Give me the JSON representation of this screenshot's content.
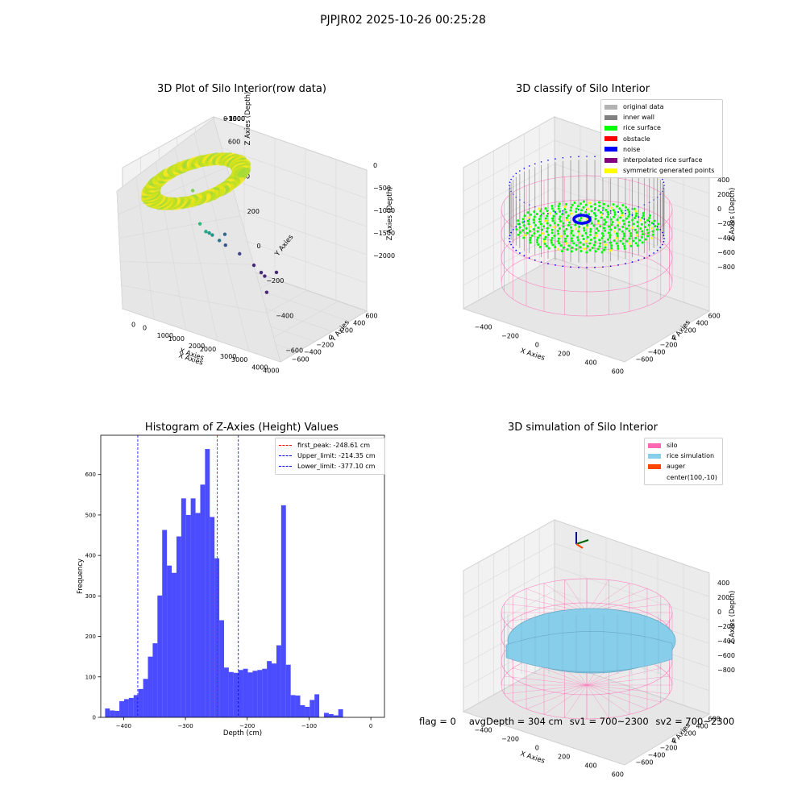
{
  "suptitle": "PJPJR02 2025-10-26 00:25:28",
  "chart_data": [
    {
      "type": "scatter",
      "projection": "3d",
      "title": "3D Plot of Silo Interior(row data)",
      "xlabel": "X Axies",
      "ylabel": "Y Axies",
      "zlabel": "Z Axies (Depth)",
      "xticks": [
        "0",
        "1000",
        "2000",
        "3000",
        "4000"
      ],
      "yticks": [
        "−600",
        "−400",
        "−200",
        "0",
        "200",
        "400",
        "600"
      ],
      "zticks": [
        "0",
        "−500",
        "−1000",
        "−1500",
        "−2000"
      ],
      "xlim": [
        -500,
        4300
      ],
      "ylim": [
        -650,
        650
      ],
      "zlim": [
        -2300,
        100
      ],
      "colormap": "viridis",
      "outlier_points": [
        {
          "x": 1200,
          "y": 300,
          "z": -700
        },
        {
          "x": 1500,
          "y": 120,
          "z": -1200
        },
        {
          "x": 1700,
          "y": 50,
          "z": -1300
        },
        {
          "x": 1800,
          "y": 30,
          "z": -1310
        },
        {
          "x": 1900,
          "y": 0,
          "z": -1330
        },
        {
          "x": 2100,
          "y": -20,
          "z": -1400
        },
        {
          "x": 2200,
          "y": 60,
          "z": -1300
        },
        {
          "x": 2300,
          "y": -80,
          "z": -1450
        },
        {
          "x": 2700,
          "y": -120,
          "z": -1550
        },
        {
          "x": 3100,
          "y": -150,
          "z": -1700
        },
        {
          "x": 3300,
          "y": -160,
          "z": -1800
        },
        {
          "x": 3400,
          "y": -170,
          "z": -1850
        },
        {
          "x": 3600,
          "y": 20,
          "z": -1800
        },
        {
          "x": 3500,
          "y": -250,
          "z": -2100
        }
      ]
    },
    {
      "type": "scatter",
      "projection": "3d",
      "title": "3D classify of Silo Interior",
      "xlabel": "X Axies",
      "ylabel": "Y Axies",
      "zlabel": "Z Axies (Depth)",
      "xticks": [
        "−400",
        "−200",
        "0",
        "200",
        "400",
        "600"
      ],
      "yticks": [
        "−600",
        "−400",
        "−200",
        "0",
        "200",
        "400",
        "600"
      ],
      "zticks": [
        "−800",
        "−600",
        "−400",
        "−200",
        "0",
        "200",
        "400"
      ],
      "legend": [
        {
          "label": "original data",
          "color": "#b3b3b3"
        },
        {
          "label": "inner wall",
          "color": "#808080"
        },
        {
          "label": "rice surface",
          "color": "#00ff00"
        },
        {
          "label": "obstacle",
          "color": "#ff0000"
        },
        {
          "label": "noise",
          "color": "#0000ff"
        },
        {
          "label": "interpolated rice surface",
          "color": "#800080"
        },
        {
          "label": "symmetric generated points",
          "color": "#ffff00"
        }
      ],
      "legend_loc": "upper right"
    },
    {
      "type": "histogram",
      "title": "Histogram of Z-Axies (Height) Values",
      "xlabel": "Depth (cm)",
      "ylabel": "Frequency",
      "xlim": [
        -437,
        22
      ],
      "ylim": [
        0,
        697
      ],
      "xticks": [
        -400,
        -300,
        -200,
        -100,
        0
      ],
      "yticks": [
        0,
        100,
        200,
        300,
        400,
        500,
        600
      ],
      "bar_color": "#0000ff",
      "bin_width": 7.7,
      "bin_start": -430,
      "counts": [
        22,
        17,
        16,
        40,
        45,
        48,
        55,
        70,
        95,
        150,
        183,
        301,
        463,
        375,
        357,
        447,
        541,
        500,
        541,
        505,
        575,
        663,
        495,
        393,
        240,
        123,
        112,
        110,
        117,
        120,
        111,
        115,
        117,
        120,
        139,
        133,
        178,
        524,
        130,
        55,
        54,
        30,
        26,
        43,
        57,
        0,
        11,
        8,
        5,
        20
      ],
      "vlines": [
        {
          "label": "first_peak: -248.61 cm",
          "x": -248.61,
          "color": "#ff0000"
        },
        {
          "label": "Upper_limit: -214.35 cm",
          "x": -214.35,
          "color": "#0000ff"
        },
        {
          "label": "Lower_limit: -377.10 cm",
          "x": -377.1,
          "color": "#0000ff"
        }
      ],
      "legend_loc": "upper right"
    },
    {
      "type": "surface",
      "projection": "3d",
      "title": "3D simulation of Silo Interior",
      "xlabel": "X Axies",
      "ylabel": "Y Axies",
      "zlabel": "Z Axies (Depth)",
      "xticks": [
        "−400",
        "−200",
        "0",
        "200",
        "400",
        "600"
      ],
      "yticks": [
        "−600",
        "−400",
        "−200",
        "0",
        "200",
        "400",
        "600"
      ],
      "zticks": [
        "−800",
        "−600",
        "−400",
        "−200",
        "0",
        "200",
        "400"
      ],
      "legend": [
        {
          "label": "silo",
          "color": "#ff69b4"
        },
        {
          "label": "rice simulation",
          "color": "#87ceeb"
        },
        {
          "label": "auger",
          "color": "#ff4500"
        },
        {
          "label": "center(100,-10)",
          "color": ""
        }
      ],
      "legend_loc": "upper right"
    }
  ],
  "footer": {
    "flag": "flag = 0",
    "avg_depth": "avgDepth = 304 cm",
    "sv1": "sv1 = 700~2300",
    "sv2": "sv2 = 700~2300"
  }
}
